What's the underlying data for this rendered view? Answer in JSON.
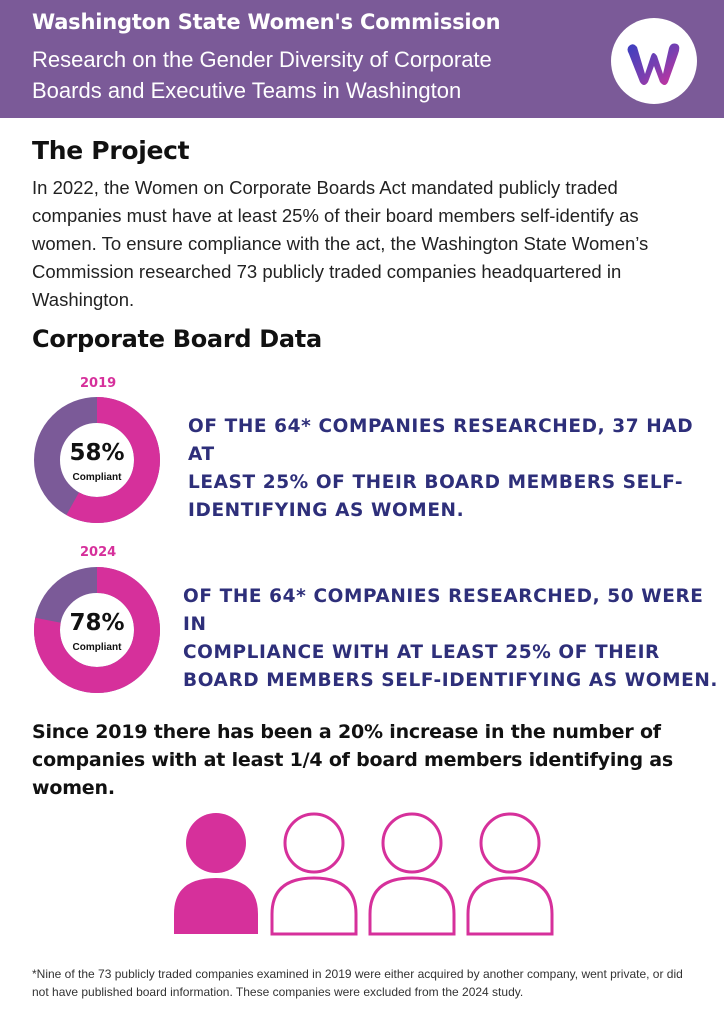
{
  "header": {
    "org_name": "Washington State Women's Commission",
    "title_line1": "Research on the Gender Diversity of Corporate",
    "title_line2": "Boards and Executive Teams in Washington",
    "logo_letter": "W"
  },
  "project": {
    "heading": "The Project",
    "body": "In 2022, the Women on Corporate Boards Act mandated publicly traded companies must have at least 25% of their board members self-identify as women. To ensure compliance with the act, the Washington State Women’s Commission researched 73 publicly traded companies headquartered in Washington."
  },
  "board_data": {
    "heading": "Corporate Board Data",
    "items": [
      {
        "year": "2019",
        "percent_label": "58%",
        "sublabel": "Compliant",
        "compliant_fraction": 0.58,
        "text_line1": "Of the 64* companies researched, 37 had at",
        "text_line2": "least 25% of their board members self-",
        "text_line3": "identifying as women."
      },
      {
        "year": "2024",
        "percent_label": "78%",
        "sublabel": "Compliant",
        "compliant_fraction": 0.78,
        "text_line1": "Of the 64* companies researched, 50 were in",
        "text_line2": "compliance with at least 25% of their",
        "text_line3": "board members self-identifying as women."
      }
    ]
  },
  "summary": {
    "text": "Since 2019 there has been a 20% increase in the number of companies with at least 1/4 of board members identifying as women."
  },
  "people_icons": {
    "filled_count": 1,
    "total_count": 4
  },
  "footnote": "*Nine of the 73 publicly traded companies examined in 2019 were either acquired by another company, went private, or did not have published board information. These companies were excluded from the 2024 study.",
  "colors": {
    "header_purple": "#7b5a98",
    "magenta": "#d6309b",
    "donut_purple": "#7b5a98",
    "navy_text": "#2e2f7a",
    "logo_gradient_start": "#3a3fc0",
    "logo_gradient_end": "#d6309b"
  }
}
